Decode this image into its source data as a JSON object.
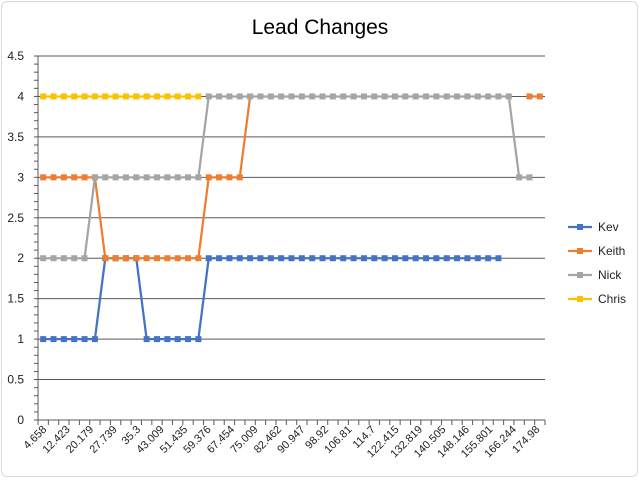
{
  "chart_data": {
    "type": "line",
    "title": "Lead Changes",
    "xlabel": "",
    "ylabel": "",
    "ylim": [
      0,
      4.5
    ],
    "yticks": [
      "0",
      "0.5",
      "1",
      "1.5",
      "2",
      "2.5",
      "3",
      "3.5",
      "4",
      "4.5"
    ],
    "x_tick_labels": [
      "4.658",
      "12.423",
      "20.179",
      "27.739",
      "35.3",
      "43.009",
      "51.435",
      "59.376",
      "67.454",
      "75.009",
      "82.462",
      "90.947",
      "98.92",
      "106.81",
      "114.7",
      "122.415",
      "132.819",
      "140.505",
      "148.146",
      "155.801",
      "166.244",
      "174.98"
    ],
    "category_count": 49,
    "legend_position": "right",
    "grid": true,
    "series": [
      {
        "name": "Kev",
        "color": "#4472C4",
        "values": [
          1,
          1,
          1,
          1,
          1,
          1,
          2,
          2,
          2,
          2,
          1,
          1,
          1,
          1,
          1,
          1,
          2,
          2,
          2,
          2,
          2,
          2,
          2,
          2,
          2,
          2,
          2,
          2,
          2,
          2,
          2,
          2,
          2,
          2,
          2,
          2,
          2,
          2,
          2,
          2,
          2,
          2,
          2,
          2,
          2,
          null,
          null,
          null,
          null
        ]
      },
      {
        "name": "Keith",
        "color": "#ED7D31",
        "values": [
          3,
          3,
          3,
          3,
          3,
          3,
          2,
          2,
          2,
          2,
          2,
          2,
          2,
          2,
          2,
          2,
          3,
          3,
          3,
          3,
          4,
          null,
          null,
          null,
          null,
          null,
          null,
          null,
          null,
          null,
          null,
          null,
          null,
          null,
          null,
          null,
          null,
          null,
          null,
          null,
          null,
          null,
          null,
          null,
          null,
          null,
          null,
          4,
          4
        ]
      },
      {
        "name": "Nick",
        "color": "#A5A5A5",
        "values": [
          2,
          2,
          2,
          2,
          2,
          3,
          3,
          3,
          3,
          3,
          3,
          3,
          3,
          3,
          3,
          3,
          4,
          4,
          4,
          4,
          4,
          4,
          4,
          4,
          4,
          4,
          4,
          4,
          4,
          4,
          4,
          4,
          4,
          4,
          4,
          4,
          4,
          4,
          4,
          4,
          4,
          4,
          4,
          4,
          4,
          4,
          3,
          3,
          null
        ]
      },
      {
        "name": "Chris",
        "color": "#FFC000",
        "values": [
          4,
          4,
          4,
          4,
          4,
          4,
          4,
          4,
          4,
          4,
          4,
          4,
          4,
          4,
          4,
          4,
          null,
          null,
          null,
          null,
          null,
          null,
          null,
          null,
          null,
          null,
          null,
          null,
          null,
          null,
          null,
          null,
          null,
          null,
          null,
          null,
          null,
          null,
          null,
          null,
          null,
          null,
          null,
          null,
          null,
          null,
          null,
          null,
          null
        ]
      }
    ]
  }
}
